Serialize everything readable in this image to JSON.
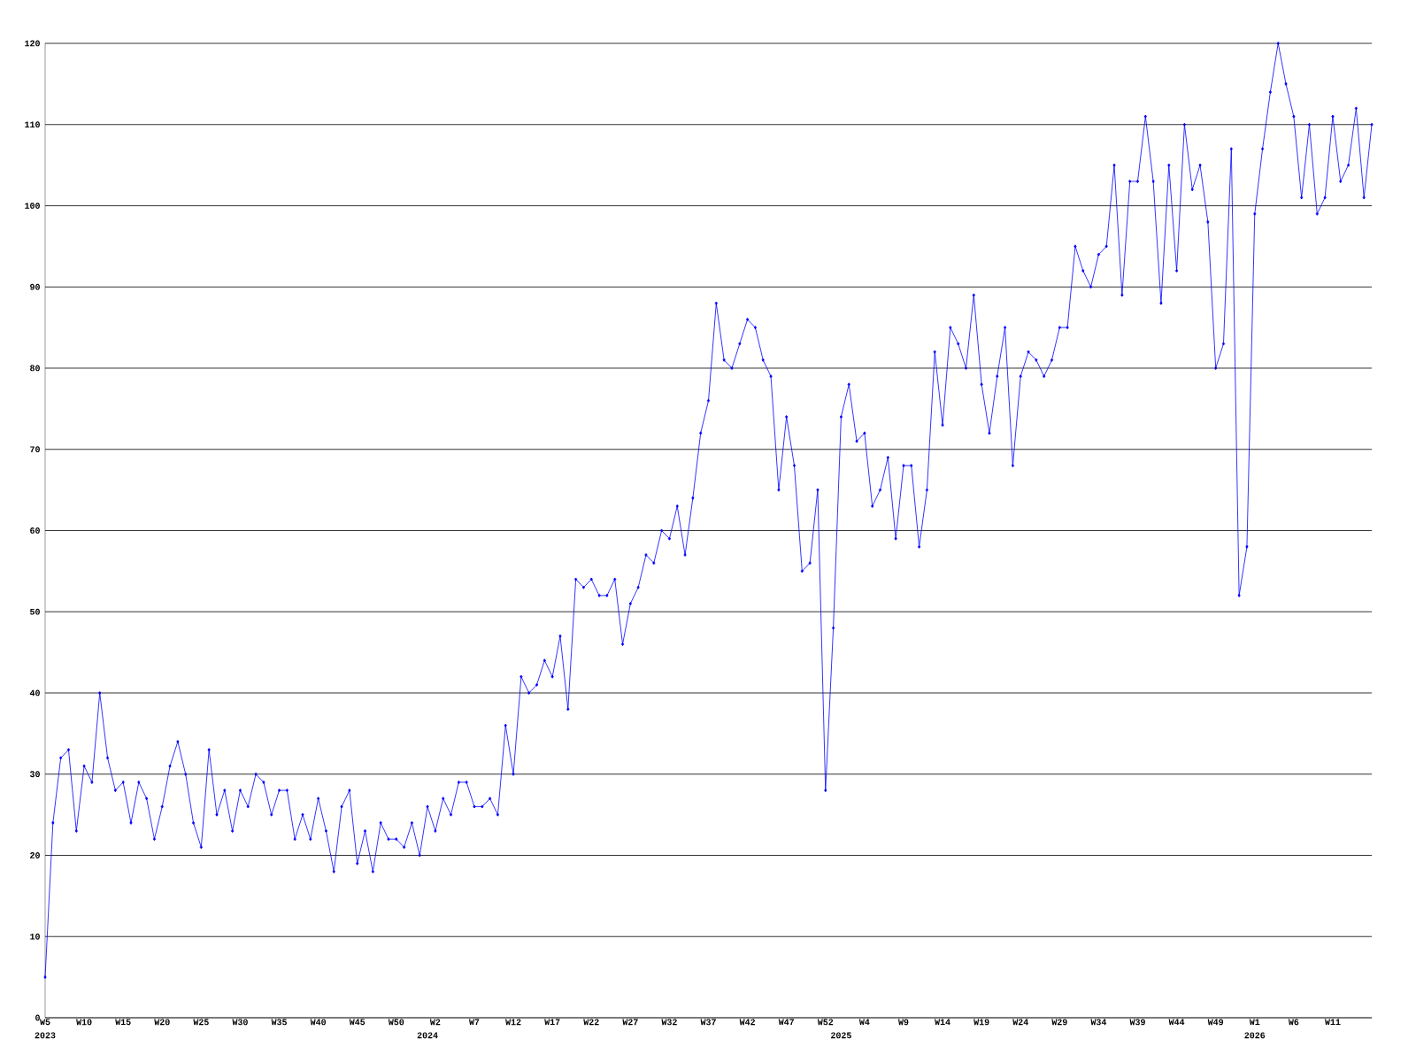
{
  "chart_data": {
    "type": "line",
    "categories": [
      "W5",
      null,
      null,
      null,
      null,
      "W10",
      null,
      null,
      null,
      null,
      "W15",
      null,
      null,
      null,
      null,
      "W20",
      null,
      null,
      null,
      null,
      "W25",
      null,
      null,
      null,
      null,
      "W30",
      null,
      null,
      null,
      null,
      "W35",
      null,
      null,
      null,
      null,
      "W40",
      null,
      null,
      null,
      null,
      "W45",
      null,
      null,
      null,
      null,
      "W50",
      null,
      null,
      null,
      null,
      "W2",
      null,
      null,
      null,
      null,
      "W7",
      null,
      null,
      null,
      null,
      "W12",
      null,
      null,
      null,
      null,
      "W17",
      null,
      null,
      null,
      null,
      "W22",
      null,
      null,
      null,
      null,
      "W27",
      null,
      null,
      null,
      null,
      "W32",
      null,
      null,
      null,
      null,
      "W37",
      null,
      null,
      null,
      null,
      "W42",
      null,
      null,
      null,
      null,
      "W47",
      null,
      null,
      null,
      null,
      "W52",
      null,
      null,
      null,
      null,
      "W4",
      null,
      null,
      null,
      null,
      "W9",
      null,
      null,
      null,
      null,
      "W14",
      null,
      null,
      null,
      null,
      "W19",
      null,
      null,
      null,
      null,
      "W24",
      null,
      null,
      null,
      null,
      "W29",
      null,
      null,
      null,
      null,
      "W34",
      null,
      null,
      null,
      null,
      "W39",
      null,
      null,
      null,
      null,
      "W44",
      null,
      null,
      null,
      null,
      "W49",
      null,
      null,
      null,
      null,
      "W1",
      null,
      null,
      null,
      null,
      "W6",
      null,
      null,
      null,
      null,
      "W11",
      null,
      null,
      null,
      null,
      null
    ],
    "series": [
      {
        "color": "#0000ff",
        "values": [
          5,
          24,
          32,
          33,
          23,
          31,
          29,
          40,
          32,
          28,
          29,
          24,
          29,
          27,
          22,
          26,
          31,
          34,
          30,
          24,
          21,
          33,
          25,
          28,
          23,
          28,
          26,
          30,
          29,
          25,
          28,
          28,
          22,
          25,
          22,
          27,
          23,
          18,
          26,
          28,
          19,
          23,
          18,
          24,
          22,
          22,
          21,
          24,
          20,
          26,
          23,
          27,
          25,
          29,
          29,
          26,
          26,
          27,
          25,
          36,
          30,
          42,
          40,
          41,
          44,
          42,
          47,
          38,
          54,
          53,
          54,
          52,
          52,
          54,
          46,
          51,
          53,
          57,
          56,
          60,
          59,
          63,
          57,
          64,
          72,
          76,
          88,
          81,
          80,
          83,
          86,
          85,
          81,
          79,
          65,
          74,
          68,
          55,
          56,
          65,
          28,
          48,
          74,
          78,
          71,
          72,
          63,
          65,
          69,
          59,
          68,
          68,
          58,
          65,
          82,
          73,
          85,
          83,
          80,
          89,
          78,
          72,
          79,
          85,
          68,
          79,
          82,
          81,
          79,
          81,
          85,
          85,
          95,
          92,
          90,
          94,
          95,
          105,
          89,
          103,
          103,
          111,
          103,
          88,
          105,
          92,
          110,
          102,
          105,
          98,
          80,
          83,
          107,
          52,
          58,
          99,
          107,
          114,
          120,
          115,
          111,
          101,
          110,
          99,
          101,
          111,
          103,
          105,
          112,
          101,
          110
        ]
      }
    ],
    "ylim": [
      0,
      120
    ],
    "yticks": [
      0,
      10,
      20,
      30,
      40,
      50,
      60,
      70,
      80,
      90,
      100,
      110,
      120
    ],
    "grid": "y",
    "marker": "diamond",
    "line_style": "solid",
    "legend": false,
    "annotations": [
      "2023",
      "2024",
      "2025",
      "2026"
    ]
  }
}
